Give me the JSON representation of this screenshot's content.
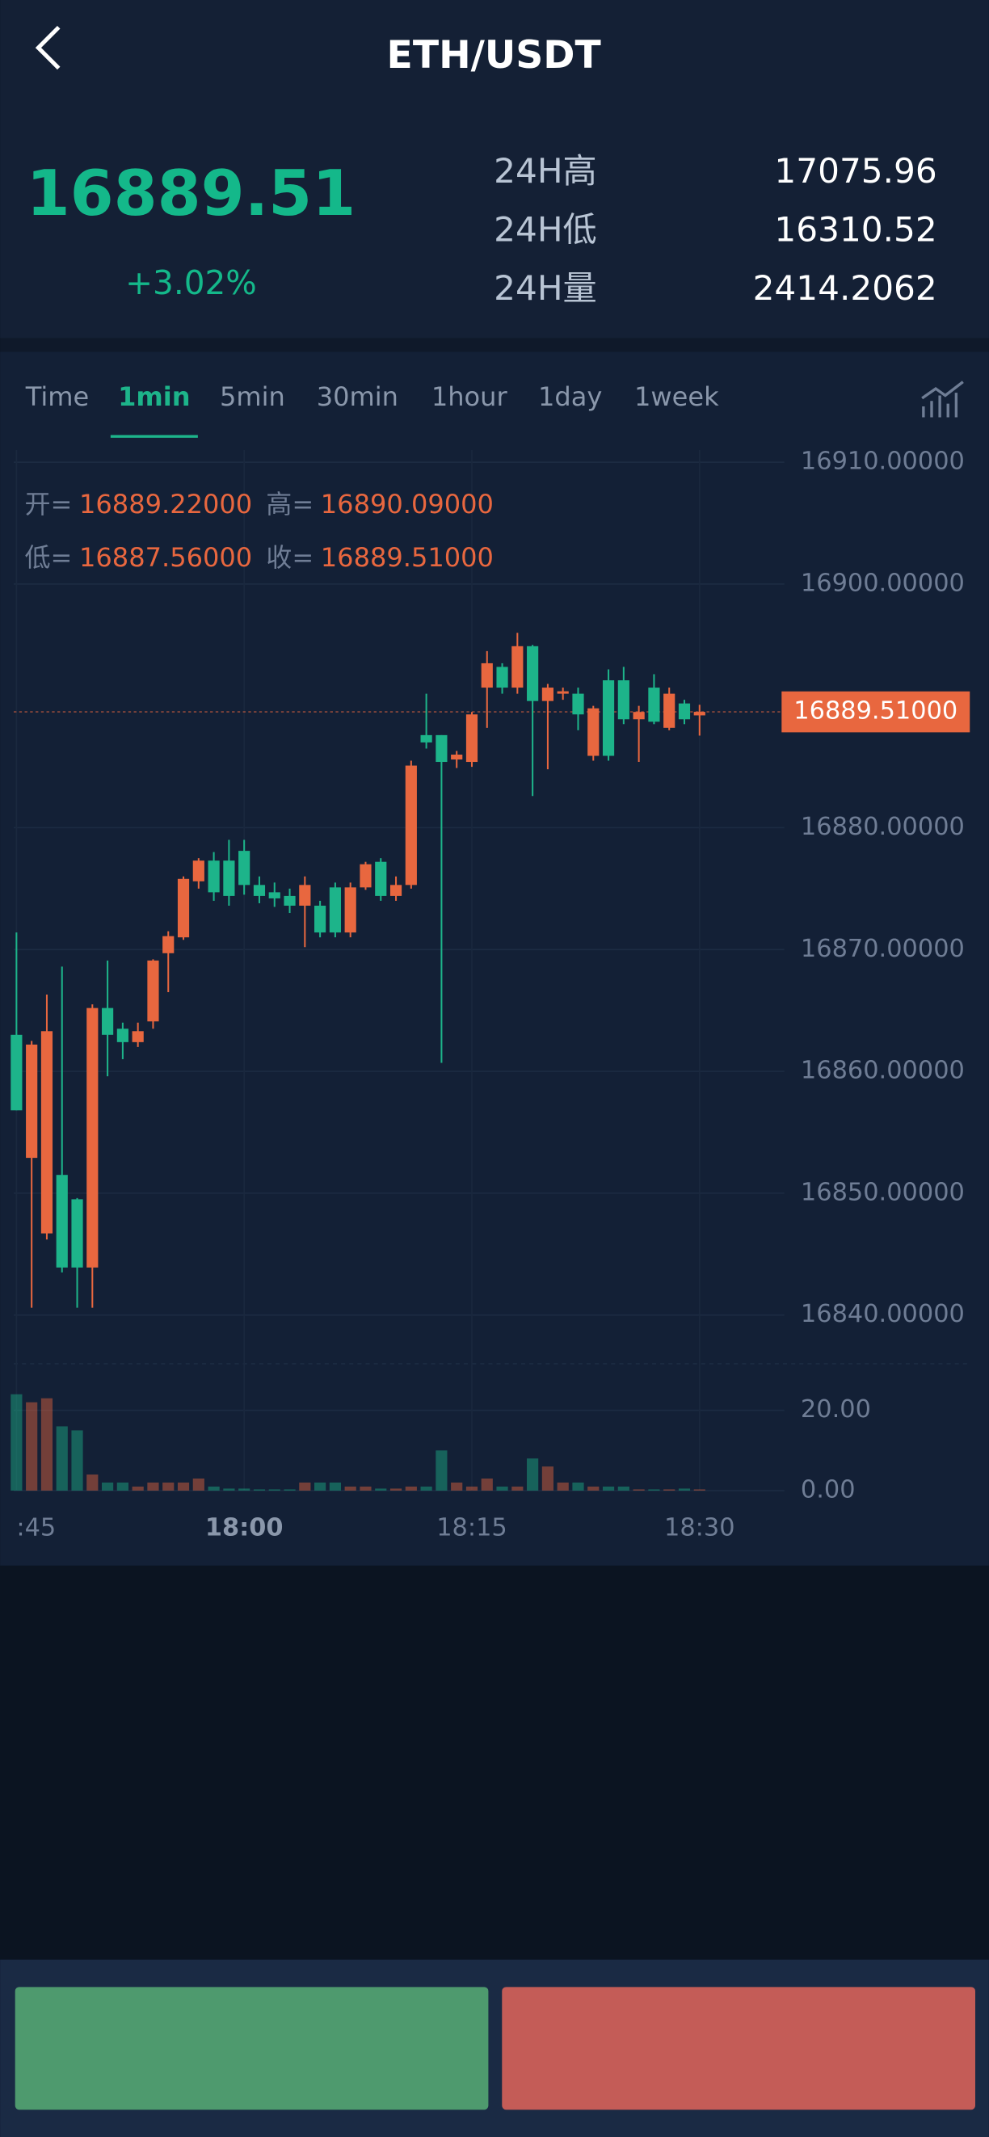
{
  "header": {
    "title": "ETH/USDT"
  },
  "ticker": {
    "price": "16889.51",
    "change": "+3.02%",
    "stats": [
      {
        "label": "24H高",
        "value": "17075.96"
      },
      {
        "label": "24H低",
        "value": "16310.52"
      },
      {
        "label": "24H量",
        "value": "2414.2062"
      }
    ]
  },
  "tabs": {
    "items": [
      "Time",
      "1min",
      "5min",
      "30min",
      "1hour",
      "1day",
      "1week"
    ],
    "active": 1
  },
  "ohlc_info": [
    {
      "label": "开=",
      "value": "16889.22000"
    },
    {
      "label": "高=",
      "value": "16890.09000"
    },
    {
      "label": "低=",
      "value": "16887.56000"
    },
    {
      "label": "收=",
      "value": "16889.51000"
    }
  ],
  "chart_data": {
    "type": "candlestick",
    "categories": [
      ":45",
      null,
      null,
      null,
      null,
      null,
      null,
      null,
      null,
      null,
      null,
      null,
      null,
      null,
      null,
      "18:00",
      null,
      null,
      null,
      null,
      null,
      null,
      null,
      null,
      null,
      null,
      null,
      null,
      null,
      null,
      "18:15",
      null,
      null,
      null,
      null,
      null,
      null,
      null,
      null,
      null,
      null,
      null,
      null,
      null,
      null,
      "18:30"
    ],
    "open": [
      16863.0,
      16852.9,
      16846.7,
      16851.5,
      16849.5,
      16843.9,
      16865.2,
      16863.5,
      16862.4,
      16864.1,
      16869.7,
      16871.0,
      16875.6,
      16877.3,
      16877.3,
      16878.1,
      16875.3,
      16874.7,
      16874.4,
      16873.6,
      16873.6,
      16875.1,
      16871.4,
      16875.1,
      16877.2,
      16874.4,
      16875.3,
      16887.6,
      16887.6,
      16885.6,
      16885.4,
      16891.5,
      16893.2,
      16891.5,
      16894.9,
      16890.4,
      16891.0,
      16891.0,
      16885.9,
      16892.1,
      16892.1,
      16888.9,
      16891.5,
      16888.2,
      16890.2,
      16889.22
    ],
    "high": [
      16871.4,
      16862.5,
      16866.3,
      16868.6,
      16849.6,
      16865.5,
      16869.1,
      16864.0,
      16864.0,
      16869.2,
      16871.5,
      16876.0,
      16877.5,
      16878.0,
      16879.0,
      16879.0,
      16876.0,
      16875.5,
      16875.0,
      16876.0,
      16874.0,
      16875.5,
      16875.5,
      16877.2,
      16877.5,
      16876.0,
      16885.5,
      16891.0,
      16887.6,
      16886.3,
      16889.5,
      16894.5,
      16893.5,
      16896.0,
      16895.0,
      16891.8,
      16891.5,
      16891.5,
      16890.0,
      16893.0,
      16893.2,
      16890.0,
      16892.6,
      16891.5,
      16890.5,
      16890.09
    ],
    "low": [
      16856.8,
      16840.6,
      16846.2,
      16843.5,
      16840.6,
      16840.6,
      16859.6,
      16861.0,
      16862.0,
      16863.5,
      16866.5,
      16870.8,
      16875.0,
      16874.0,
      16873.6,
      16874.5,
      16873.8,
      16873.5,
      16873.0,
      16870.2,
      16871.0,
      16871.0,
      16871.0,
      16874.9,
      16874.0,
      16874.0,
      16875.0,
      16886.5,
      16860.7,
      16884.9,
      16885.0,
      16888.2,
      16891.0,
      16891.0,
      16882.6,
      16884.8,
      16890.5,
      16888.0,
      16885.5,
      16885.5,
      16888.5,
      16885.4,
      16888.5,
      16888.0,
      16888.5,
      16887.56
    ],
    "close": [
      16856.8,
      16862.2,
      16863.3,
      16843.9,
      16843.9,
      16865.2,
      16863.0,
      16862.4,
      16863.3,
      16869.1,
      16871.1,
      16875.8,
      16877.3,
      16874.7,
      16874.4,
      16875.3,
      16874.4,
      16874.2,
      16873.6,
      16875.3,
      16871.4,
      16871.4,
      16875.1,
      16877.0,
      16874.4,
      16875.3,
      16885.1,
      16887.0,
      16885.4,
      16886.0,
      16889.3,
      16893.5,
      16891.5,
      16894.9,
      16890.4,
      16891.5,
      16891.2,
      16889.3,
      16889.8,
      16885.9,
      16888.9,
      16889.5,
      16888.7,
      16891.0,
      16888.9,
      16889.51
    ],
    "volume": [
      24,
      22,
      23,
      16,
      15,
      4,
      2,
      2,
      1,
      2,
      2,
      2,
      3,
      1,
      0.5,
      0.5,
      0.3,
      0.3,
      0.3,
      2,
      2,
      2,
      1,
      1,
      0.5,
      0.5,
      1,
      1,
      10,
      2,
      1,
      3,
      1,
      1,
      8,
      6,
      2,
      2,
      1,
      1,
      1,
      0.3,
      0.3,
      0.3,
      0.5,
      0.3
    ],
    "up_color": "#e8673f",
    "down_color": "#1db48a",
    "ylim": [
      16836,
      16911
    ],
    "yticks": [
      {
        "value": 16840,
        "label": "16840.00000"
      },
      {
        "value": 16850,
        "label": "16850.00000"
      },
      {
        "value": 16860,
        "label": "16860.00000"
      },
      {
        "value": 16870,
        "label": "16870.00000"
      },
      {
        "value": 16880,
        "label": "16880.00000"
      },
      {
        "value": 16900,
        "label": "16900.00000"
      },
      {
        "value": 16910,
        "label": "16910.00000"
      }
    ],
    "last_price": {
      "value": 16889.51,
      "label": "16889.51000"
    },
    "volume_ylim": [
      0,
      26.5
    ],
    "volume_ticks": [
      {
        "value": 0,
        "label": "0.00"
      },
      {
        "value": 20,
        "label": "20.00"
      }
    ],
    "grid": true
  }
}
